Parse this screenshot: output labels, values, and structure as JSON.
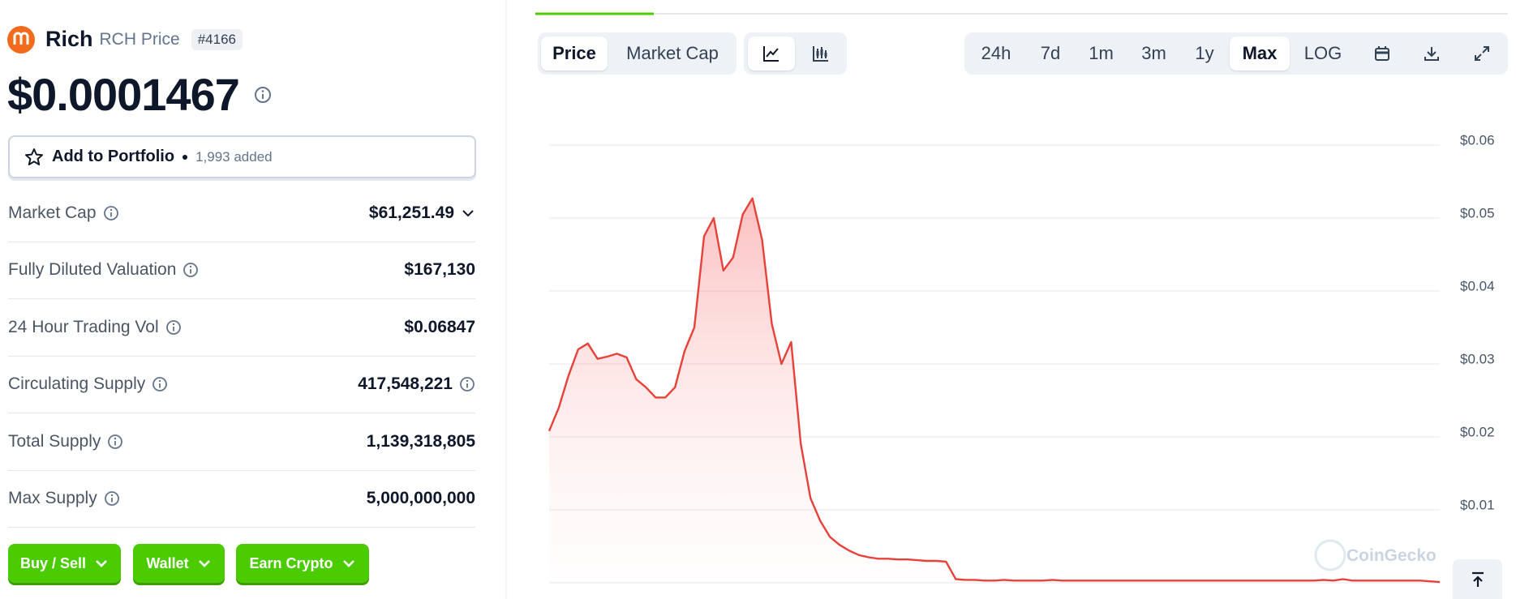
{
  "header": {
    "name": "Rich",
    "ticker_label": "RCH Price",
    "rank": "#4166"
  },
  "price": "$0.0001467",
  "portfolio": {
    "label": "Add to Portfolio",
    "added": "1,993 added"
  },
  "stats": [
    {
      "label": "Market Cap",
      "value": "$61,251.49"
    },
    {
      "label": "Fully Diluted Valuation",
      "value": "$167,130"
    },
    {
      "label": "24 Hour Trading Vol",
      "value": "$0.06847"
    },
    {
      "label": "Circulating Supply",
      "value": "417,548,221"
    },
    {
      "label": "Total Supply",
      "value": "1,139,318,805"
    },
    {
      "label": "Max Supply",
      "value": "5,000,000,000"
    }
  ],
  "actions": [
    "Buy / Sell",
    "Wallet",
    "Earn Crypto"
  ],
  "chart_tabs": [
    "Price",
    "Market Cap"
  ],
  "ranges": [
    "24h",
    "7d",
    "1m",
    "3m",
    "1y",
    "Max",
    "LOG"
  ],
  "watermark": "CoinGecko",
  "chart_data": {
    "type": "area",
    "color": "#e8413a",
    "ylim": [
      0,
      0.06
    ],
    "yticks": [
      {
        "value": 0.01,
        "label": "$0.01"
      },
      {
        "value": 0.02,
        "label": "$0.02"
      },
      {
        "value": 0.03,
        "label": "$0.03"
      },
      {
        "value": 0.04,
        "label": "$0.04"
      },
      {
        "value": 0.05,
        "label": "$0.05"
      },
      {
        "value": 0.06,
        "label": "$0.06"
      }
    ],
    "grid": true,
    "values": [
      0.0208,
      0.024,
      0.0284,
      0.032,
      0.0328,
      0.0307,
      0.031,
      0.0314,
      0.0309,
      0.0279,
      0.0268,
      0.0254,
      0.0254,
      0.0268,
      0.0318,
      0.035,
      0.0475,
      0.05,
      0.0428,
      0.0446,
      0.0505,
      0.0527,
      0.047,
      0.0355,
      0.03,
      0.033,
      0.019,
      0.0116,
      0.0085,
      0.0063,
      0.0052,
      0.0044,
      0.0038,
      0.0035,
      0.0033,
      0.0033,
      0.0032,
      0.0032,
      0.0031,
      0.003,
      0.003,
      0.0029,
      0.0005,
      0.0004,
      0.0004,
      0.0003,
      0.0003,
      0.0004,
      0.0003,
      0.0003,
      0.0003,
      0.0003,
      0.0004,
      0.0003,
      0.0003,
      0.0003,
      0.0003,
      0.0003,
      0.0003,
      0.0003,
      0.0003,
      0.0003,
      0.0003,
      0.0003,
      0.0003,
      0.0003,
      0.0003,
      0.0003,
      0.0003,
      0.0003,
      0.0003,
      0.0003,
      0.0003,
      0.0003,
      0.0003,
      0.0003,
      0.0003,
      0.0003,
      0.0003,
      0.0003,
      0.0004,
      0.0003,
      0.0005,
      0.0003,
      0.0003,
      0.0003,
      0.0003,
      0.0003,
      0.0003,
      0.0003,
      0.0003,
      0.0002,
      0.0001
    ]
  }
}
